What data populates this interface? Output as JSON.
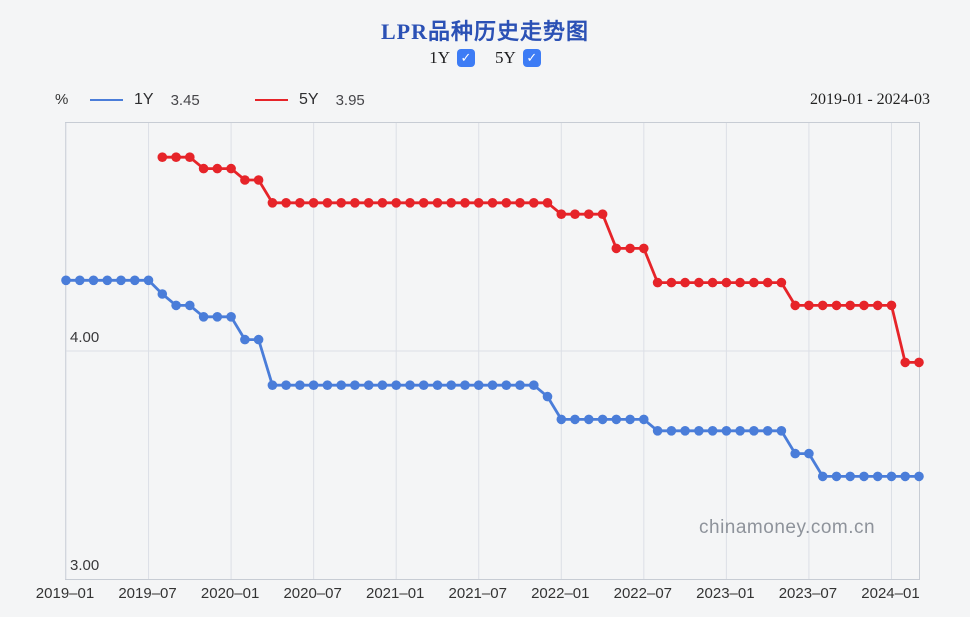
{
  "header": {
    "title": "LPR品种历史走势图",
    "toggles": [
      {
        "label": "1Y",
        "checked": true,
        "check_glyph": "✓"
      },
      {
        "label": "5Y",
        "checked": true,
        "check_glyph": "✓"
      }
    ]
  },
  "legend": {
    "unit": "%",
    "items": [
      {
        "name": "1Y",
        "value": "3.45",
        "color": "#4a7dd9"
      },
      {
        "name": "5Y",
        "value": "3.95",
        "color": "#e62429"
      }
    ],
    "date_range": "2019-01 - 2024-03"
  },
  "watermark": "chinamoney.com.cn",
  "colors": {
    "series_1y": "#4a7dd9",
    "series_5y": "#e62429",
    "checkbox": "#3d7cf5",
    "title": "#2b51b5",
    "gridline": "#dcdfe6",
    "border": "#c7ccd4",
    "background": "#f4f5f6"
  },
  "chart_data": {
    "type": "line",
    "title": "LPR品种历史走势图",
    "xlabel": "",
    "ylabel": "%",
    "ylim": [
      3.0,
      5.0
    ],
    "grid": "vertical-6-month-and-horizontal-4.00",
    "legend_position": "top-left",
    "x": [
      "2019-01",
      "2019-02",
      "2019-03",
      "2019-04",
      "2019-05",
      "2019-06",
      "2019-07",
      "2019-08",
      "2019-09",
      "2019-10",
      "2019-11",
      "2019-12",
      "2020-01",
      "2020-02",
      "2020-03",
      "2020-04",
      "2020-05",
      "2020-06",
      "2020-07",
      "2020-08",
      "2020-09",
      "2020-10",
      "2020-11",
      "2020-12",
      "2021-01",
      "2021-02",
      "2021-03",
      "2021-04",
      "2021-05",
      "2021-06",
      "2021-07",
      "2021-08",
      "2021-09",
      "2021-10",
      "2021-11",
      "2021-12",
      "2022-01",
      "2022-02",
      "2022-03",
      "2022-04",
      "2022-05",
      "2022-06",
      "2022-07",
      "2022-08",
      "2022-09",
      "2022-10",
      "2022-11",
      "2022-12",
      "2023-01",
      "2023-02",
      "2023-03",
      "2023-04",
      "2023-05",
      "2023-06",
      "2023-07",
      "2023-08",
      "2023-09",
      "2023-10",
      "2023-11",
      "2023-12",
      "2024-01",
      "2024-02",
      "2024-03"
    ],
    "series": [
      {
        "name": "1Y",
        "color": "#4a7dd9",
        "latest": "3.45",
        "values": [
          4.31,
          4.31,
          4.31,
          4.31,
          4.31,
          4.31,
          4.31,
          4.25,
          4.2,
          4.2,
          4.15,
          4.15,
          4.15,
          4.05,
          4.05,
          3.85,
          3.85,
          3.85,
          3.85,
          3.85,
          3.85,
          3.85,
          3.85,
          3.85,
          3.85,
          3.85,
          3.85,
          3.85,
          3.85,
          3.85,
          3.85,
          3.85,
          3.85,
          3.85,
          3.85,
          3.8,
          3.7,
          3.7,
          3.7,
          3.7,
          3.7,
          3.7,
          3.7,
          3.65,
          3.65,
          3.65,
          3.65,
          3.65,
          3.65,
          3.65,
          3.65,
          3.65,
          3.65,
          3.55,
          3.55,
          3.45,
          3.45,
          3.45,
          3.45,
          3.45,
          3.45,
          3.45,
          3.45
        ]
      },
      {
        "name": "5Y",
        "color": "#e62429",
        "latest": "3.95",
        "values": [
          null,
          null,
          null,
          null,
          null,
          null,
          null,
          4.85,
          4.85,
          4.85,
          4.8,
          4.8,
          4.8,
          4.75,
          4.75,
          4.65,
          4.65,
          4.65,
          4.65,
          4.65,
          4.65,
          4.65,
          4.65,
          4.65,
          4.65,
          4.65,
          4.65,
          4.65,
          4.65,
          4.65,
          4.65,
          4.65,
          4.65,
          4.65,
          4.65,
          4.65,
          4.6,
          4.6,
          4.6,
          4.6,
          4.45,
          4.45,
          4.45,
          4.3,
          4.3,
          4.3,
          4.3,
          4.3,
          4.3,
          4.3,
          4.3,
          4.3,
          4.3,
          4.2,
          4.2,
          4.2,
          4.2,
          4.2,
          4.2,
          4.2,
          4.2,
          3.95,
          3.95
        ]
      }
    ],
    "xticks": [
      {
        "index": 0,
        "label": "2019–01"
      },
      {
        "index": 6,
        "label": "2019–07"
      },
      {
        "index": 12,
        "label": "2020–01"
      },
      {
        "index": 18,
        "label": "2020–07"
      },
      {
        "index": 24,
        "label": "2021–01"
      },
      {
        "index": 30,
        "label": "2021–07"
      },
      {
        "index": 36,
        "label": "2022–01"
      },
      {
        "index": 42,
        "label": "2022–07"
      },
      {
        "index": 48,
        "label": "2023–01"
      },
      {
        "index": 54,
        "label": "2023–07"
      },
      {
        "index": 60,
        "label": "2024–01"
      }
    ],
    "yticks": [
      {
        "value": 3.0,
        "label": "3.00"
      },
      {
        "value": 4.0,
        "label": "4.00"
      }
    ]
  }
}
